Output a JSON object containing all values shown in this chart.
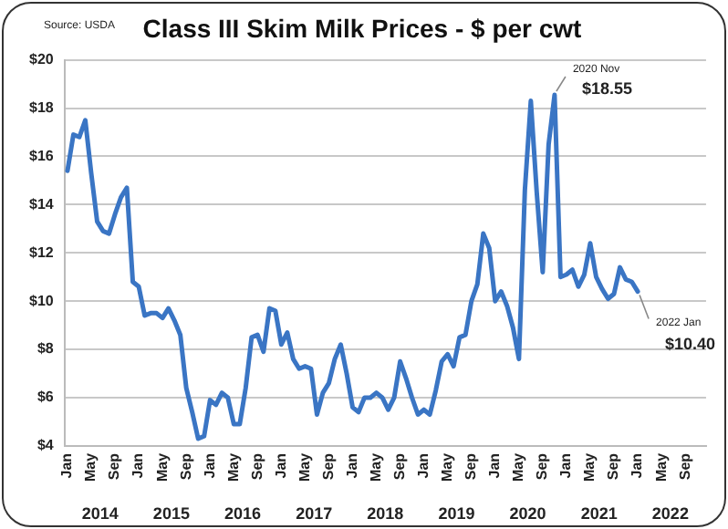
{
  "chart_data": {
    "type": "line",
    "title": "Class III Skim Milk Prices - $ per cwt",
    "categories": [
      "Jan",
      null,
      null,
      null,
      "May",
      null,
      null,
      null,
      "Sep",
      null,
      null,
      null,
      "Jan",
      null,
      null,
      null,
      "May",
      null,
      null,
      null,
      "Sep",
      null,
      null,
      null,
      "Jan",
      null,
      null,
      null,
      "May",
      null,
      null,
      null,
      "Sep",
      null,
      null,
      null,
      "Jan",
      null,
      null,
      null,
      "May",
      null,
      null,
      null,
      "Sep",
      null,
      null,
      null,
      "Jan",
      null,
      null,
      null,
      "May",
      null,
      null,
      null,
      "Sep",
      null,
      null,
      null,
      "Jan",
      null,
      null,
      null,
      "May",
      null,
      null,
      null,
      "Sep",
      null,
      null,
      null,
      "Jan",
      null,
      null,
      null,
      "May",
      null,
      null,
      null,
      "Sep",
      null,
      null,
      null,
      "Jan",
      null,
      null,
      null,
      "May",
      null,
      null,
      null,
      "Sep",
      null,
      null,
      null,
      "Jan",
      null,
      null,
      null,
      "May",
      null,
      null,
      null,
      "Sep",
      null,
      null,
      null
    ],
    "series": [
      {
        "color": "#3a75c4",
        "values": [
          15.4,
          16.9,
          16.8,
          17.5,
          15.3,
          13.3,
          12.9,
          12.8,
          13.6,
          14.3,
          14.7,
          10.8,
          10.6,
          9.4,
          9.5,
          9.5,
          9.3,
          9.7,
          9.2,
          8.6,
          6.4,
          5.4,
          4.3,
          4.4,
          5.9,
          5.7,
          6.2,
          6.0,
          4.9,
          4.9,
          6.4,
          8.5,
          8.6,
          7.9,
          9.7,
          9.6,
          8.2,
          8.7,
          7.6,
          7.2,
          7.3,
          7.2,
          5.3,
          6.2,
          6.6,
          7.6,
          8.2,
          7.0,
          5.6,
          5.4,
          6.0,
          6.0,
          6.2,
          6.0,
          5.5,
          6.0,
          7.5,
          6.8,
          6.0,
          5.3,
          5.5,
          5.3,
          6.3,
          7.5,
          7.8,
          7.3,
          8.5,
          8.6,
          10.0,
          10.7,
          12.8,
          12.2,
          10.0,
          10.4,
          9.8,
          8.9,
          7.6,
          14.6,
          18.3,
          14.5,
          11.2,
          16.5,
          18.55,
          11.0,
          11.1,
          11.3,
          10.6,
          11.1,
          12.4,
          11.0,
          10.5,
          10.1,
          10.3,
          11.4,
          10.9,
          10.8,
          10.4,
          null,
          null,
          null,
          null,
          null,
          null,
          null,
          null,
          null,
          null,
          null
        ]
      }
    ],
    "ylim": [
      4,
      20
    ],
    "yticks": [
      {
        "value": 4,
        "label": "$4"
      },
      {
        "value": 6,
        "label": "$6"
      },
      {
        "value": 8,
        "label": "$8"
      },
      {
        "value": 10,
        "label": "$10"
      },
      {
        "value": 12,
        "label": "$12"
      },
      {
        "value": 14,
        "label": "$14"
      },
      {
        "value": 16,
        "label": "$16"
      },
      {
        "value": 18,
        "label": "$18"
      },
      {
        "value": 20,
        "label": "$20"
      }
    ],
    "grid": "y",
    "legend": false,
    "marker": "none",
    "line_style": "solid",
    "annotations": [
      "Source: USDA",
      "2014",
      "2015",
      "2016",
      "2017",
      "2018",
      "2019",
      "2020",
      "2021",
      "2022",
      "2020 Nov",
      "$18.55",
      "2022 Jan",
      "$10.40"
    ]
  }
}
